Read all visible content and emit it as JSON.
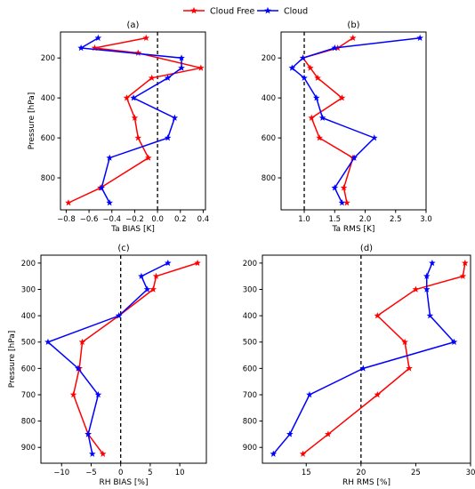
{
  "legend": {
    "entries": [
      {
        "label": "Cloud Free",
        "color": "#ff0000"
      },
      {
        "label": "Cloud",
        "color": "#0000ff"
      }
    ]
  },
  "chart_data": [
    {
      "type": "line",
      "title": "(a)",
      "xlabel": "Ta BIAS [K]",
      "ylabel": "Pressure [hPa]",
      "xlim": [
        -0.85,
        0.42
      ],
      "ylim": [
        960,
        70
      ],
      "xticks": [
        -0.8,
        -0.6,
        -0.4,
        -0.2,
        0.0,
        0.2,
        0.4
      ],
      "xtick_labels": [
        "−0.8",
        "−0.6",
        "−0.4",
        "−0.2",
        "0.0",
        "0.2",
        "0.4"
      ],
      "yticks": [
        200,
        400,
        600,
        800
      ],
      "ytick_labels": [
        "200",
        "400",
        "600",
        "800"
      ],
      "series": [
        {
          "name": "Cloud Free",
          "color": "#ff0000",
          "x": [
            -0.1,
            -0.55,
            -0.17,
            0.38,
            -0.05,
            -0.27,
            -0.2,
            -0.17,
            -0.08,
            -0.5,
            -0.78
          ],
          "y": [
            100,
            150,
            175,
            250,
            300,
            400,
            500,
            600,
            700,
            850,
            925
          ]
        },
        {
          "name": "Cloud",
          "color": "#0000ff",
          "x": [
            -0.52,
            -0.67,
            0.21,
            0.21,
            0.09,
            -0.21,
            0.15,
            0.09,
            -0.42,
            -0.49,
            -0.42
          ],
          "y": [
            100,
            150,
            200,
            250,
            300,
            400,
            500,
            600,
            700,
            850,
            925
          ]
        }
      ],
      "reference_line": {
        "axis": "x",
        "value": 0.0
      }
    },
    {
      "type": "line",
      "title": "(b)",
      "xlabel": "Ta RMS [K]",
      "ylabel": "",
      "xlim": [
        0.62,
        3.0
      ],
      "ylim": [
        960,
        70
      ],
      "xticks": [
        1.0,
        1.5,
        2.0,
        2.5,
        3.0
      ],
      "xtick_labels": [
        "1.0",
        "1.5",
        "2.0",
        "2.5",
        "3.0"
      ],
      "yticks": [
        200,
        400,
        600,
        800
      ],
      "ytick_labels": [
        "200",
        "400",
        "600",
        "800"
      ],
      "series": [
        {
          "name": "Cloud Free",
          "color": "#ff0000",
          "x": [
            1.8,
            1.55,
            0.98,
            1.1,
            1.22,
            1.62,
            1.12,
            1.25,
            1.8,
            1.65,
            1.7
          ],
          "y": [
            100,
            150,
            200,
            250,
            300,
            400,
            500,
            600,
            700,
            850,
            925
          ]
        },
        {
          "name": "Cloud",
          "color": "#0000ff",
          "x": [
            2.9,
            1.5,
            0.98,
            0.8,
            1.0,
            1.2,
            1.3,
            2.15,
            1.82,
            1.5,
            1.62
          ],
          "y": [
            100,
            150,
            200,
            250,
            300,
            400,
            500,
            600,
            700,
            850,
            925
          ]
        }
      ],
      "reference_line": {
        "axis": "x",
        "value": 1.0
      }
    },
    {
      "type": "line",
      "title": "(c)",
      "xlabel": "RH BIAS [%]",
      "ylabel": "Pressure [hPa]",
      "xlim": [
        -13.5,
        14.5
      ],
      "ylim": [
        960,
        170
      ],
      "xticks": [
        -10,
        -5,
        0,
        5,
        10
      ],
      "xtick_labels": [
        "−10",
        "−5",
        "0",
        "5",
        "10"
      ],
      "yticks": [
        200,
        300,
        400,
        500,
        600,
        700,
        800,
        900
      ],
      "ytick_labels": [
        "200",
        "300",
        "400",
        "500",
        "600",
        "700",
        "800",
        "900"
      ],
      "series": [
        {
          "name": "Cloud Free",
          "color": "#ff0000",
          "x": [
            13,
            6,
            5.5,
            -0.3,
            -6.5,
            -7,
            -8,
            -5.5,
            -3
          ],
          "y": [
            200,
            250,
            300,
            400,
            500,
            600,
            700,
            850,
            925
          ]
        },
        {
          "name": "Cloud",
          "color": "#0000ff",
          "x": [
            8,
            3.5,
            4.5,
            -0.3,
            -12.3,
            -7.2,
            -3.8,
            -5.5,
            -4.8
          ],
          "y": [
            200,
            250,
            300,
            400,
            500,
            600,
            700,
            850,
            925
          ]
        }
      ],
      "reference_line": {
        "axis": "x",
        "value": 0
      }
    },
    {
      "type": "line",
      "title": "(d)",
      "xlabel": "RH RMS [%]",
      "ylabel": "",
      "xlim": [
        11.0,
        30.0
      ],
      "ylim": [
        960,
        170
      ],
      "xticks": [
        15,
        20,
        25,
        30
      ],
      "xtick_labels": [
        "15",
        "20",
        "25",
        "30"
      ],
      "yticks": [
        200,
        300,
        400,
        500,
        600,
        700,
        800,
        900
      ],
      "ytick_labels": [
        "200",
        "300",
        "400",
        "500",
        "600",
        "700",
        "800",
        "900"
      ],
      "series": [
        {
          "name": "Cloud Free",
          "color": "#ff0000",
          "x": [
            29.5,
            29.3,
            25,
            21.5,
            24,
            24.4,
            21.5,
            17,
            14.7
          ],
          "y": [
            200,
            250,
            300,
            400,
            500,
            600,
            700,
            850,
            925
          ]
        },
        {
          "name": "Cloud",
          "color": "#0000ff",
          "x": [
            26.5,
            26,
            26,
            26.3,
            28.5,
            20.2,
            15.3,
            13.5,
            12
          ],
          "y": [
            200,
            250,
            300,
            400,
            500,
            600,
            700,
            850,
            925
          ]
        }
      ],
      "reference_line": {
        "axis": "x",
        "value": 20
      }
    }
  ]
}
